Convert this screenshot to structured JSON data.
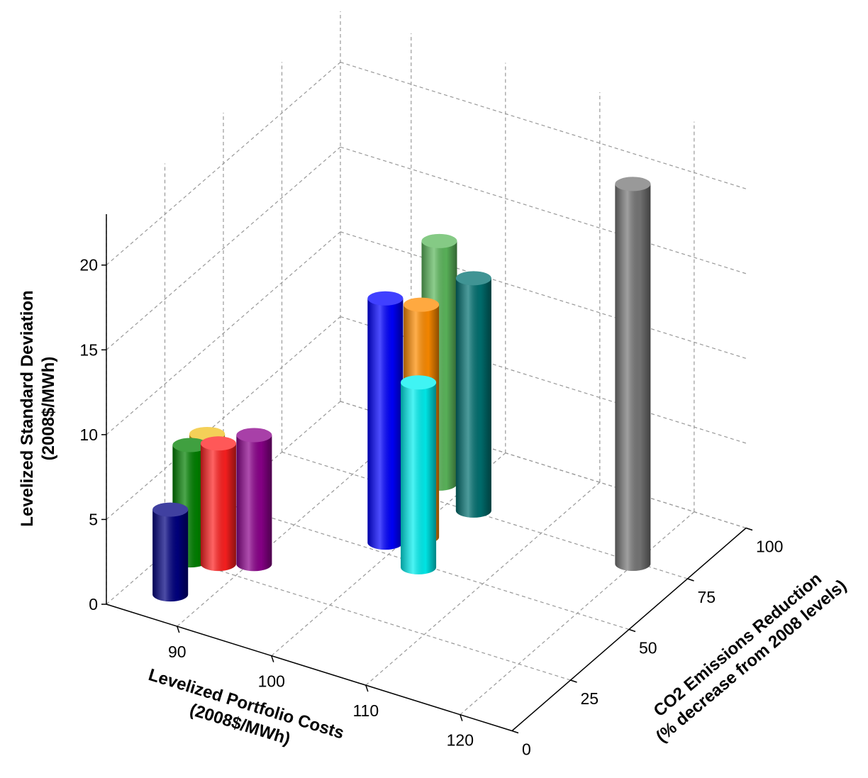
{
  "chart_data": {
    "type": "bar3d",
    "xlabel": [
      "Levelized Portfolio Costs",
      "(2008$/MWh)"
    ],
    "ylabel": [
      "CO2 Emissions Reduction",
      "(% decrease from 2008 levels)"
    ],
    "zlabel": [
      "Levelized Standard Deviation",
      "(2008$/MWh)"
    ],
    "xlim": [
      82.5,
      125.5
    ],
    "xticks": [
      90,
      100,
      110,
      120
    ],
    "ylim": [
      0,
      100
    ],
    "yticks": [
      0,
      25,
      50,
      75,
      100
    ],
    "zlim": [
      0,
      23
    ],
    "zticks": [
      0,
      5,
      10,
      15,
      20
    ],
    "grid": true,
    "points": [
      {
        "x": 86.6,
        "y": 10.8,
        "z": 5.0,
        "color": "#000080"
      },
      {
        "x": 84.5,
        "y": 35,
        "z": 6.2,
        "color": "#f0c020"
      },
      {
        "x": 85.1,
        "y": 25.4,
        "z": 6.8,
        "color": "#008000"
      },
      {
        "x": 87.6,
        "y": 27.3,
        "z": 7.1,
        "color": "#ff2020"
      },
      {
        "x": 90.4,
        "y": 31.3,
        "z": 7.6,
        "color": "#8b008b"
      },
      {
        "x": 98.7,
        "y": 53.9,
        "z": 14.4,
        "color": "#0000ff"
      },
      {
        "x": 101,
        "y": 60,
        "z": 13.7,
        "color": "#ff8c00"
      },
      {
        "x": 103.5,
        "y": 48.7,
        "z": 10.9,
        "color": "#00f0f0"
      },
      {
        "x": 97.6,
        "y": 81.4,
        "z": 14.3,
        "color": "#5cb85c"
      },
      {
        "x": 102.7,
        "y": 75.5,
        "z": 13.7,
        "color": "#007070"
      },
      {
        "x": 119.9,
        "y": 74.2,
        "z": 22.4,
        "color": "#777777"
      }
    ]
  }
}
